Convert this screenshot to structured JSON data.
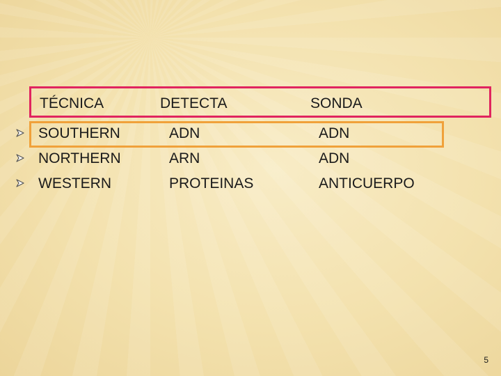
{
  "table": {
    "headers": [
      "TÉCNICA",
      "DETECTA",
      "SONDA"
    ],
    "rows": [
      [
        "SOUTHERN",
        "ADN",
        "ADN"
      ],
      [
        "NORTHERN",
        "ARN",
        "ADN"
      ],
      [
        "WESTERN",
        "PROTEINAS",
        "ANTICUERPO"
      ]
    ]
  },
  "bullet_icon": "arrow-bullet-icon",
  "colors": {
    "header_outline": "#e0245f",
    "row_highlight_outline": "#f0a13a",
    "background": "#f3e1ad"
  },
  "page_number": "5"
}
